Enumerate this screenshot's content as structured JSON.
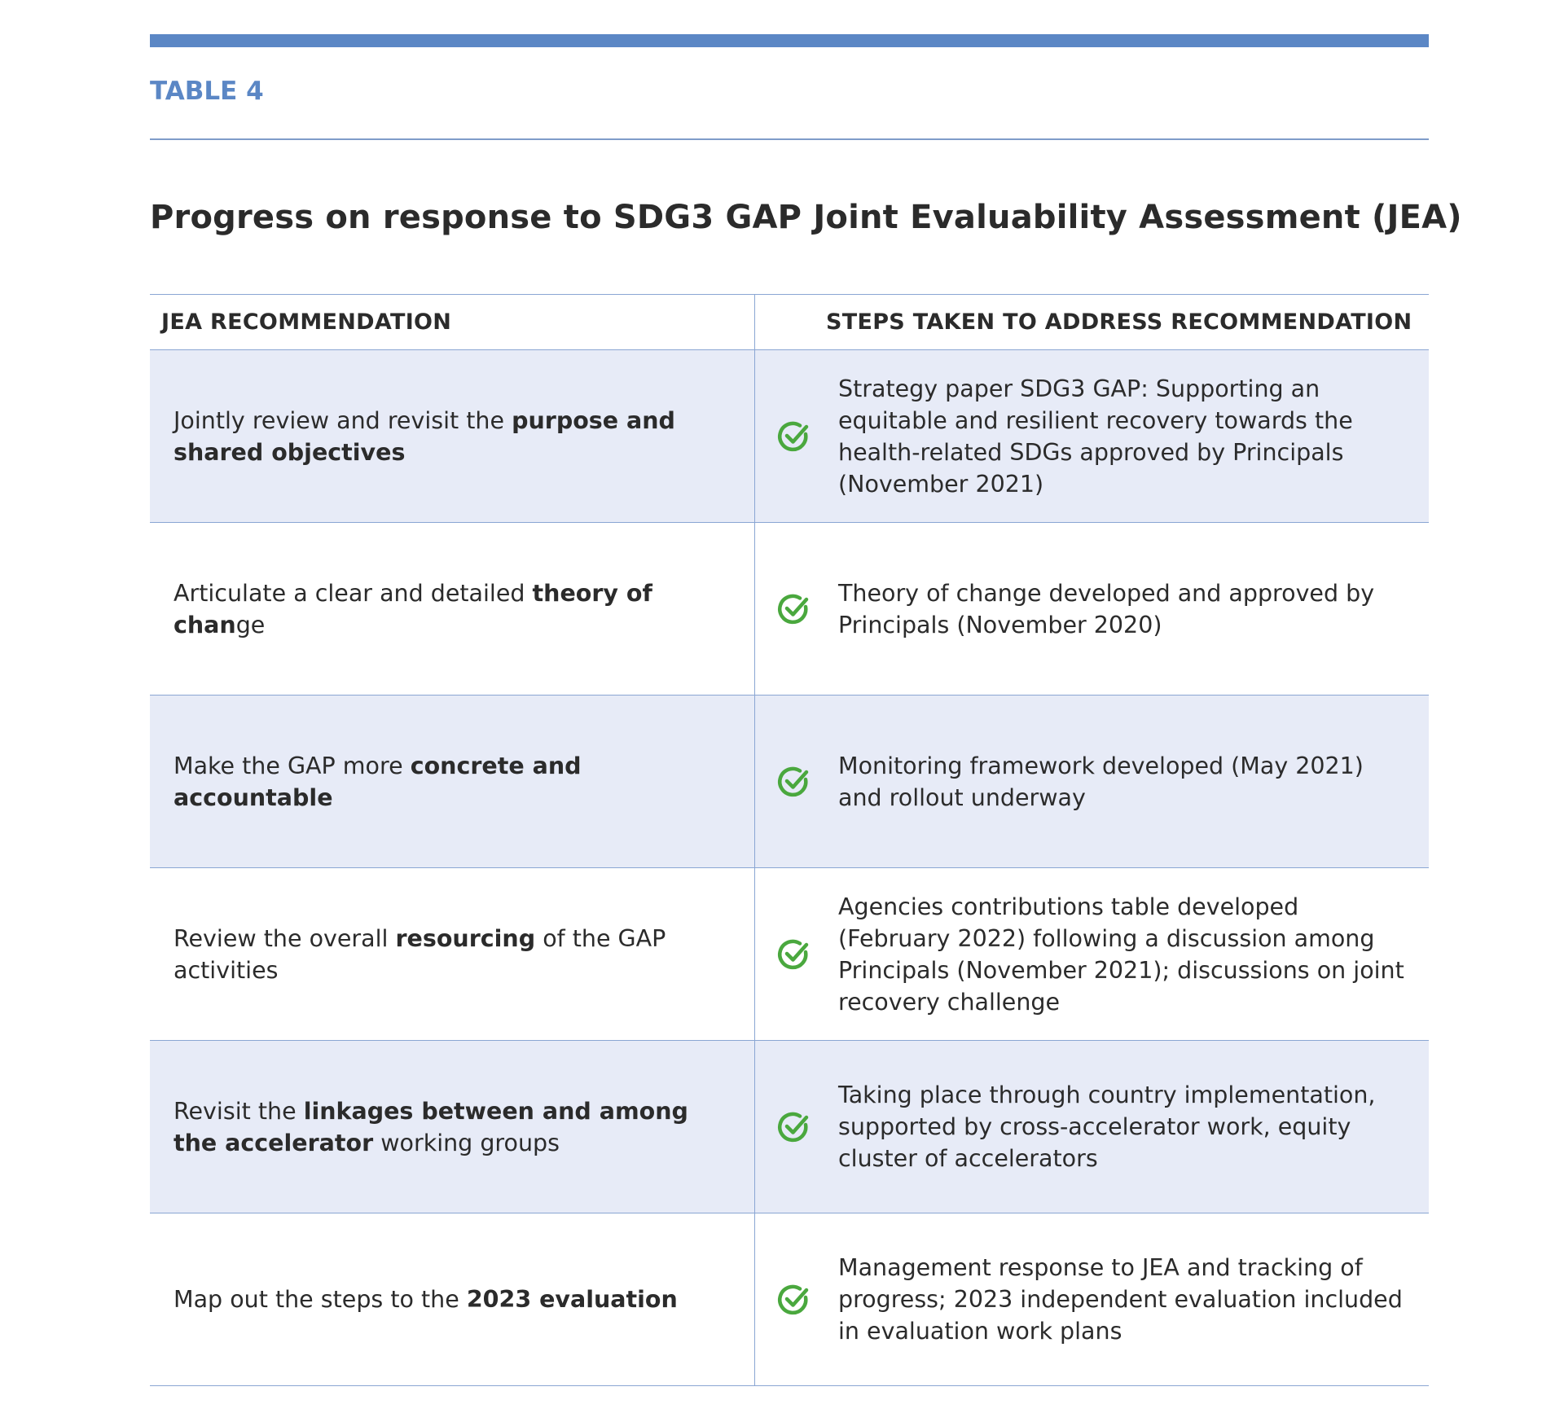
{
  "header": {
    "label": "TABLE 4",
    "title": "Progress on response to SDG3 GAP Joint Evaluability Assessment (JEA)"
  },
  "table": {
    "columns": [
      "JEA RECOMMENDATION",
      "STEPS TAKEN TO ADDRESS RECOMMENDATION"
    ],
    "rows": [
      {
        "recommendation": [
          {
            "text": "Jointly review and revisit the ",
            "bold": false
          },
          {
            "text": "purpose and shared objectives",
            "bold": true
          }
        ],
        "steps": "Strategy paper SDG3 GAP: Supporting an equitable and resilient recovery towards the health-related SDGs approved by Principals (November 2021)"
      },
      {
        "recommendation": [
          {
            "text": "Articulate a clear and detailed ",
            "bold": false
          },
          {
            "text": "theory of chan",
            "bold": true
          },
          {
            "text": "ge",
            "bold": false
          }
        ],
        "steps": "Theory of change developed and approved by Principals (November 2020)"
      },
      {
        "recommendation": [
          {
            "text": "Make the GAP more ",
            "bold": false
          },
          {
            "text": "concrete and accountable",
            "bold": true
          }
        ],
        "steps": "Monitoring framework developed (May 2021) and rollout underway"
      },
      {
        "recommendation": [
          {
            "text": "Review the overall ",
            "bold": false
          },
          {
            "text": "resourcing",
            "bold": true
          },
          {
            "text": " of the GAP activities",
            "bold": false
          }
        ],
        "steps": "Agencies contributions table developed (February 2022) following a discussion among Principals (November 2021); discussions on joint recovery challenge"
      },
      {
        "recommendation": [
          {
            "text": "Revisit the ",
            "bold": false
          },
          {
            "text": "linkages between and among the accelerator",
            "bold": true
          },
          {
            "text": " working groups",
            "bold": false
          }
        ],
        "steps": "Taking place through country implementation, supported by cross-accelerator work, equity cluster of accelerators"
      },
      {
        "recommendation": [
          {
            "text": "Map out the steps to the ",
            "bold": false
          },
          {
            "text": "2023 evaluation",
            "bold": true
          }
        ],
        "steps": "Management response to JEA and tracking of progress; 2023 independent evaluation included in evaluation work plans"
      }
    ]
  }
}
